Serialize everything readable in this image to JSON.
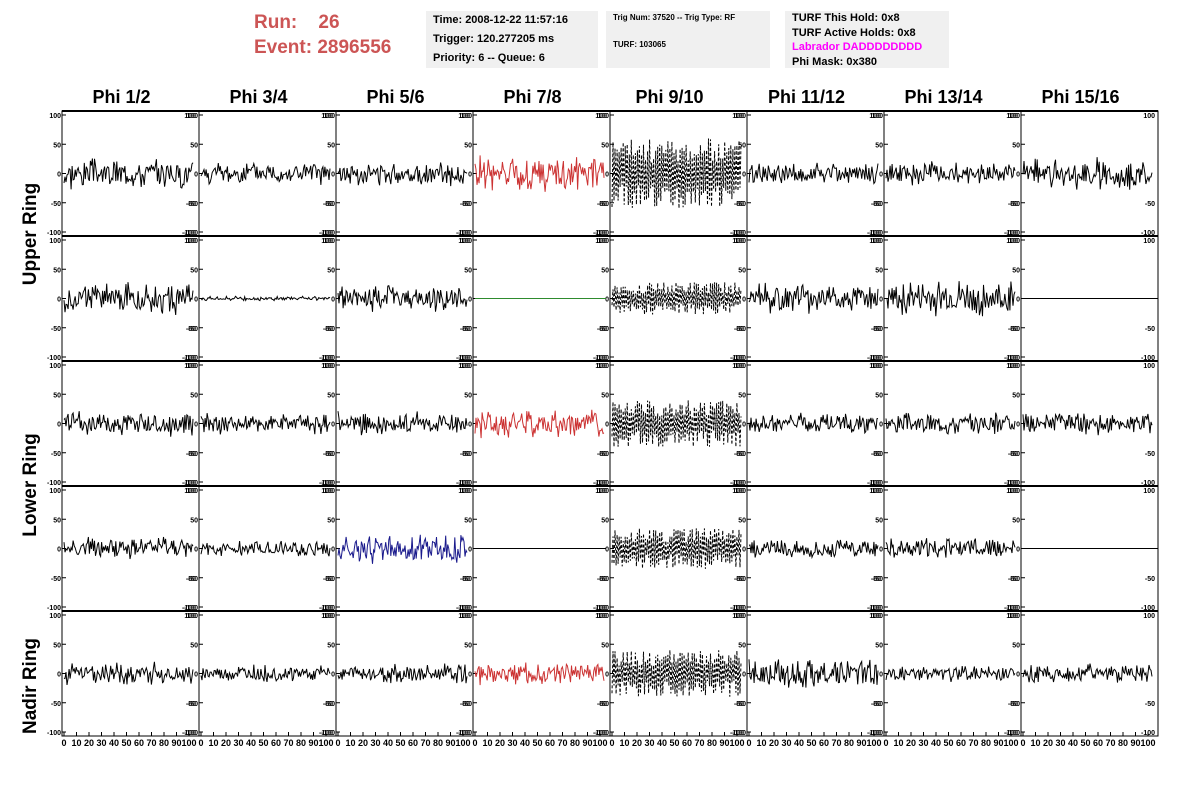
{
  "header": {
    "run_label": "Run:",
    "run_value": "26",
    "event_label": "Event:",
    "event_value": "2896556",
    "time": "Time: 2008-12-22 11:57:16",
    "trigger": "Trigger: 120.277205 ms",
    "priority": "Priority: 6 -- Queue: 6",
    "trig_num": "Trig Num: 37520 -- Trig Type: RF",
    "turf": "TURF: 103065",
    "turf_this_hold": "TURF This Hold: 0x8",
    "turf_active_holds": "TURF Active Holds: 0x8",
    "labrador": "Labrador DADDDDDDDD",
    "phi_mask": "Phi Mask: 0x380"
  },
  "columns": [
    "Phi 1/2",
    "Phi 3/4",
    "Phi 5/6",
    "Phi 7/8",
    "Phi 9/10",
    "Phi 11/12",
    "Phi 13/14",
    "Phi 15/16"
  ],
  "rings": [
    "Upper Ring",
    "Lower Ring",
    "Nadir Ring"
  ],
  "colors": {
    "trace": "#000000",
    "masked": "#cc3333",
    "triggered": "#1a1a8c",
    "flat_green": "#2e8b2e",
    "run_text": "#cc5555",
    "info_box": "#f0f0f0",
    "magenta": "#ff00ff"
  },
  "chart_data": {
    "type": "line",
    "xlim": [
      0,
      100
    ],
    "ylim": [
      -100,
      100
    ],
    "x_ticks": [
      "0",
      "10",
      "20",
      "30",
      "40",
      "50",
      "60",
      "70",
      "80",
      "90",
      "100"
    ],
    "y_ticks": [
      "100",
      "50",
      "0",
      "-50",
      "-100"
    ],
    "panels": [
      {
        "row": 0,
        "col": 0,
        "style": "normal",
        "amplitude": 30
      },
      {
        "row": 0,
        "col": 1,
        "style": "normal",
        "amplitude": 22
      },
      {
        "row": 0,
        "col": 2,
        "style": "normal",
        "amplitude": 22
      },
      {
        "row": 0,
        "col": 3,
        "style": "masked",
        "amplitude": 35
      },
      {
        "row": 0,
        "col": 4,
        "style": "dashed",
        "amplitude": 60
      },
      {
        "row": 0,
        "col": 5,
        "style": "normal",
        "amplitude": 22
      },
      {
        "row": 0,
        "col": 6,
        "style": "normal",
        "amplitude": 22
      },
      {
        "row": 0,
        "col": 7,
        "style": "normal",
        "amplitude": 30
      },
      {
        "row": 1,
        "col": 0,
        "style": "normal",
        "amplitude": 30
      },
      {
        "row": 1,
        "col": 1,
        "style": "quiet",
        "amplitude": 4
      },
      {
        "row": 1,
        "col": 2,
        "style": "normal",
        "amplitude": 25
      },
      {
        "row": 1,
        "col": 3,
        "style": "flat_green",
        "amplitude": 0
      },
      {
        "row": 1,
        "col": 4,
        "style": "dashed",
        "amplitude": 28
      },
      {
        "row": 1,
        "col": 5,
        "style": "normal",
        "amplitude": 28
      },
      {
        "row": 1,
        "col": 6,
        "style": "normal",
        "amplitude": 35
      },
      {
        "row": 1,
        "col": 7,
        "style": "flat",
        "amplitude": 0
      },
      {
        "row": 2,
        "col": 0,
        "style": "normal",
        "amplitude": 25
      },
      {
        "row": 2,
        "col": 1,
        "style": "normal",
        "amplitude": 20
      },
      {
        "row": 2,
        "col": 2,
        "style": "normal",
        "amplitude": 22
      },
      {
        "row": 2,
        "col": 3,
        "style": "masked",
        "amplitude": 28
      },
      {
        "row": 2,
        "col": 4,
        "style": "dashed",
        "amplitude": 40
      },
      {
        "row": 2,
        "col": 5,
        "style": "normal",
        "amplitude": 20
      },
      {
        "row": 2,
        "col": 6,
        "style": "normal",
        "amplitude": 22
      },
      {
        "row": 2,
        "col": 7,
        "style": "normal",
        "amplitude": 22
      },
      {
        "row": 3,
        "col": 0,
        "style": "normal",
        "amplitude": 22
      },
      {
        "row": 3,
        "col": 1,
        "style": "normal",
        "amplitude": 15
      },
      {
        "row": 3,
        "col": 2,
        "style": "triggered",
        "amplitude": 30
      },
      {
        "row": 3,
        "col": 3,
        "style": "flat",
        "amplitude": 0
      },
      {
        "row": 3,
        "col": 4,
        "style": "dashed",
        "amplitude": 35
      },
      {
        "row": 3,
        "col": 5,
        "style": "normal",
        "amplitude": 18
      },
      {
        "row": 3,
        "col": 6,
        "style": "normal",
        "amplitude": 20
      },
      {
        "row": 3,
        "col": 7,
        "style": "flat",
        "amplitude": 0
      },
      {
        "row": 4,
        "col": 0,
        "style": "normal",
        "amplitude": 22
      },
      {
        "row": 4,
        "col": 1,
        "style": "normal",
        "amplitude": 16
      },
      {
        "row": 4,
        "col": 2,
        "style": "normal",
        "amplitude": 18
      },
      {
        "row": 4,
        "col": 3,
        "style": "masked",
        "amplitude": 20
      },
      {
        "row": 4,
        "col": 4,
        "style": "dashed",
        "amplitude": 40
      },
      {
        "row": 4,
        "col": 5,
        "style": "normal",
        "amplitude": 28
      },
      {
        "row": 4,
        "col": 6,
        "style": "normal",
        "amplitude": 16
      },
      {
        "row": 4,
        "col": 7,
        "style": "normal",
        "amplitude": 18
      }
    ]
  }
}
